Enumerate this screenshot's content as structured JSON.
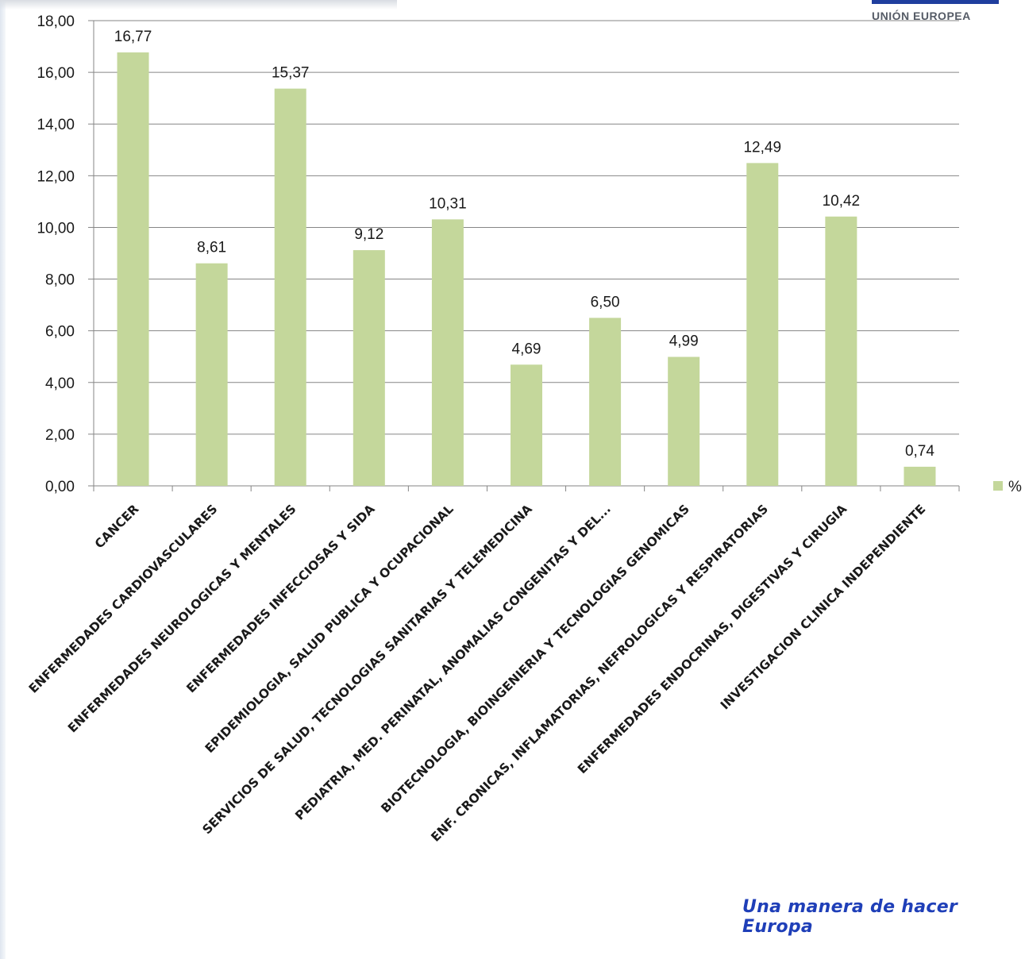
{
  "header": {
    "eu_label": "UNIÓN EUROPEA"
  },
  "footer": {
    "slogan": "Una manera de hacer Europa"
  },
  "colors": {
    "bar": "#c4d79b",
    "grid": "#868686",
    "text": "#1a1a1a",
    "eu_blue": "#1f3e9e"
  },
  "chart_data": {
    "type": "bar",
    "title": "",
    "xlabel": "",
    "ylabel": "",
    "ylim": [
      0,
      18
    ],
    "yticks": [
      "0,00",
      "2,00",
      "4,00",
      "6,00",
      "8,00",
      "10,00",
      "12,00",
      "14,00",
      "16,00",
      "18,00"
    ],
    "grid": true,
    "legend_position": "right",
    "categories": [
      "CANCER",
      "ENFERMEDADES CARDIOVASCULARES",
      "ENFERMEDADES NEUROLOGICAS Y MENTALES",
      "ENFERMEDADES INFECCIOSAS Y SIDA",
      "EPIDEMIOLOGIA, SALUD PUBLICA Y OCUPACIONAL",
      "SERVICIOS DE SALUD, TECNOLOGIAS SANITARIAS Y TELEMEDICINA",
      "PEDIATRIA, MED. PERINATAL, ANOMALIAS CONGENITAS Y DEL...",
      "BIOTECNOLOGIA, BIOINGENIERIA Y TECNOLOGIAS GENOMICAS",
      "ENF. CRONICAS, INFLAMATORIAS, NEFROLOGICAS Y RESPIRATORIAS",
      "ENFERMEDADES ENDOCRINAS, DIGESTIVAS Y CIRUGIA",
      "INVESTIGACION CLINICA INDEPENDIENTE"
    ],
    "series": [
      {
        "name": "%",
        "values": [
          16.77,
          8.61,
          15.37,
          9.12,
          10.31,
          4.69,
          6.5,
          4.99,
          12.49,
          10.42,
          0.74
        ],
        "labels": [
          "16,77",
          "8,61",
          "15,37",
          "9,12",
          "10,31",
          "4,69",
          "6,50",
          "4,99",
          "12,49",
          "10,42",
          "0,74"
        ]
      }
    ]
  }
}
